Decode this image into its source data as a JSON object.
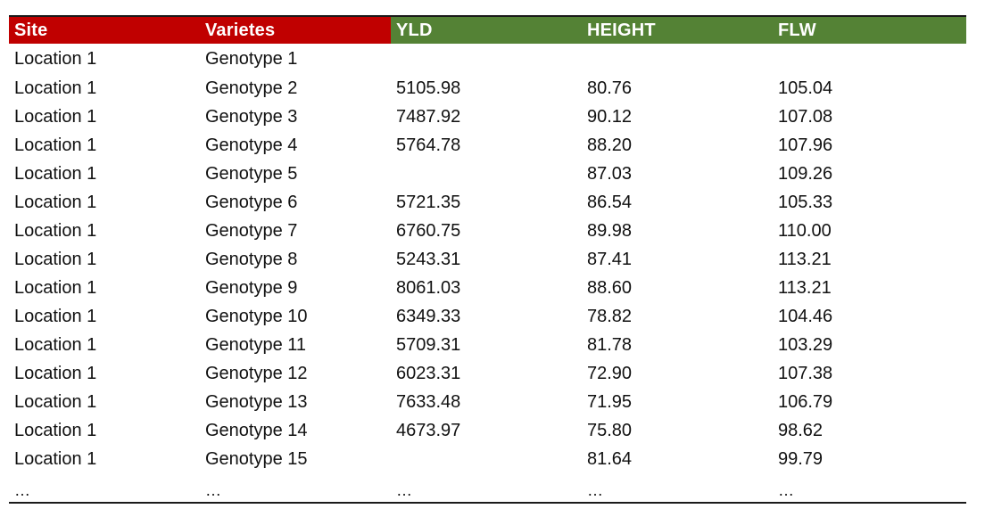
{
  "headers": [
    {
      "label": "Site",
      "color": "#c00000"
    },
    {
      "label": "Varietes",
      "color": "#c00000"
    },
    {
      "label": "YLD",
      "color": "#548235"
    },
    {
      "label": "HEIGHT",
      "color": "#548235"
    },
    {
      "label": "FLW",
      "color": "#548235"
    }
  ],
  "rows": [
    [
      "Location 1",
      "Genotype 1",
      "",
      "",
      ""
    ],
    [
      "Location 1",
      "Genotype 2",
      "5105.98",
      "80.76",
      "105.04"
    ],
    [
      "Location 1",
      "Genotype 3",
      "7487.92",
      "90.12",
      "107.08"
    ],
    [
      "Location 1",
      "Genotype 4",
      "5764.78",
      "88.20",
      "107.96"
    ],
    [
      "Location 1",
      "Genotype 5",
      "",
      "87.03",
      "109.26"
    ],
    [
      "Location 1",
      "Genotype 6",
      "5721.35",
      "86.54",
      "105.33"
    ],
    [
      "Location 1",
      "Genotype 7",
      "6760.75",
      "89.98",
      "110.00"
    ],
    [
      "Location 1",
      "Genotype 8",
      "5243.31",
      "87.41",
      "113.21"
    ],
    [
      "Location 1",
      "Genotype 9",
      "8061.03",
      "88.60",
      "113.21"
    ],
    [
      "Location 1",
      "Genotype 10",
      "6349.33",
      "78.82",
      "104.46"
    ],
    [
      "Location 1",
      "Genotype 11",
      "5709.31",
      "81.78",
      "103.29"
    ],
    [
      "Location 1",
      "Genotype 12",
      "6023.31",
      "72.90",
      "107.38"
    ],
    [
      "Location 1",
      "Genotype 13",
      "7633.48",
      "71.95",
      "106.79"
    ],
    [
      "Location 1",
      "Genotype 14",
      "4673.97",
      "75.80",
      "98.62"
    ],
    [
      "Location 1",
      "Genotype 15",
      "",
      "81.64",
      "99.79"
    ]
  ],
  "ellipsis_row": [
    "…",
    "…",
    "…",
    "…",
    "…"
  ]
}
